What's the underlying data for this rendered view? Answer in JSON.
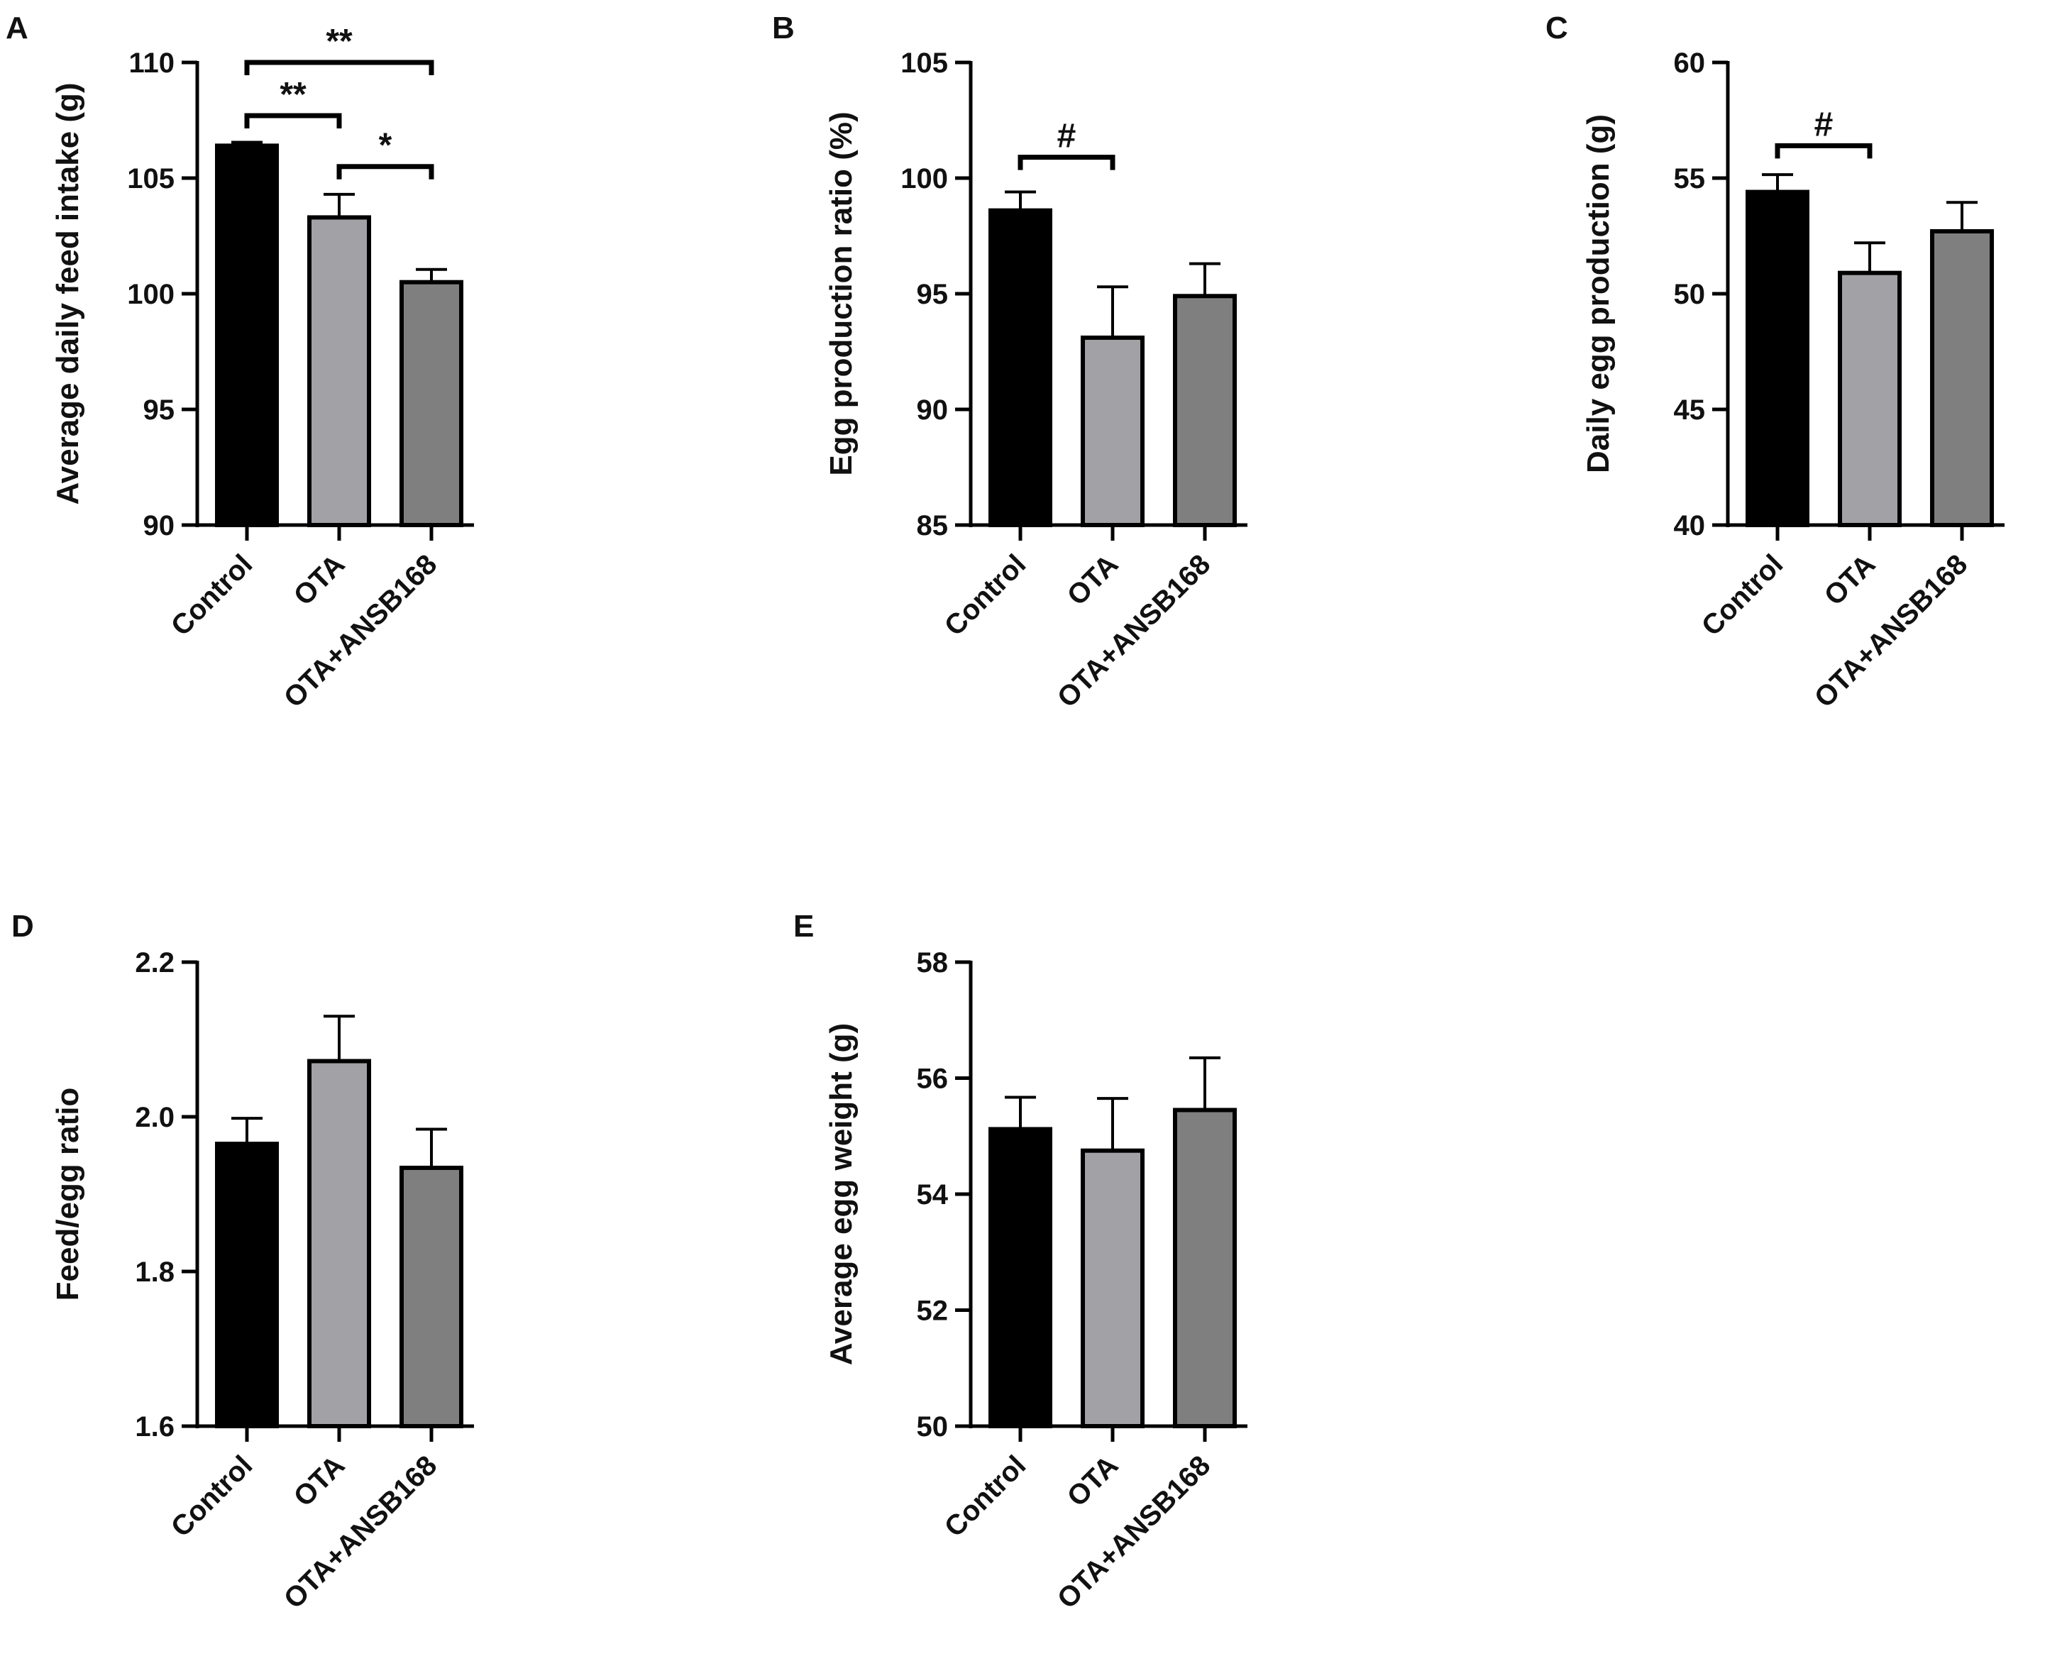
{
  "figure": {
    "colors": {
      "Control": "#000000",
      "OTA": "#a2a1a6",
      "OTA+ANSB168": "#7f7f7f",
      "axis": "#000000"
    }
  },
  "chart_data": [
    {
      "panel": "A",
      "type": "bar",
      "categories": [
        "Control",
        "OTA",
        "OTA+ANSB168"
      ],
      "values": [
        106.4,
        103.3,
        100.5
      ],
      "errors": [
        0.15,
        1.0,
        0.55
      ],
      "ylabel": "Average daily feed intake (g)",
      "xlabel": "",
      "ylim": [
        90,
        110
      ],
      "yticks": [
        90,
        95,
        100,
        105,
        110
      ],
      "ytick_labels": [
        "90",
        "95",
        "100",
        "105",
        "110"
      ],
      "significance": [
        {
          "from": "Control",
          "to": "OTA+ANSB168",
          "label": "**",
          "level": 110
        },
        {
          "from": "Control",
          "to": "OTA",
          "label": "**",
          "level": 107.7
        },
        {
          "from": "OTA",
          "to": "OTA+ANSB168",
          "label": "*",
          "level": 105.5
        }
      ]
    },
    {
      "panel": "B",
      "type": "bar",
      "categories": [
        "Control",
        "OTA",
        "OTA+ANSB168"
      ],
      "values": [
        98.6,
        93.1,
        94.9
      ],
      "errors": [
        0.8,
        2.2,
        1.4
      ],
      "ylabel": "Egg production ratio (%)",
      "xlabel": "",
      "ylim": [
        85,
        105
      ],
      "yticks": [
        85,
        90,
        95,
        100,
        105
      ],
      "ytick_labels": [
        "85",
        "90",
        "95",
        "100",
        "105"
      ],
      "significance": [
        {
          "from": "Control",
          "to": "OTA",
          "label": "#",
          "level": 100.9
        }
      ]
    },
    {
      "panel": "C",
      "type": "bar",
      "categories": [
        "Control",
        "OTA",
        "OTA+ANSB168"
      ],
      "values": [
        54.4,
        50.9,
        52.7
      ],
      "errors": [
        0.75,
        1.3,
        1.25
      ],
      "ylabel": "Daily egg production (g)",
      "xlabel": "",
      "ylim": [
        40,
        60
      ],
      "yticks": [
        40,
        45,
        50,
        55,
        60
      ],
      "ytick_labels": [
        "40",
        "45",
        "50",
        "55",
        "60"
      ],
      "significance": [
        {
          "from": "Control",
          "to": "OTA",
          "label": "#",
          "level": 56.4
        }
      ]
    },
    {
      "panel": "D",
      "type": "bar",
      "categories": [
        "Control",
        "OTA",
        "OTA+ANSB168"
      ],
      "values": [
        1.965,
        2.072,
        1.934
      ],
      "errors": [
        0.033,
        0.058,
        0.05
      ],
      "ylabel": "Feed/egg ratio",
      "xlabel": "",
      "ylim": [
        1.6,
        2.2
      ],
      "yticks": [
        1.6,
        1.8,
        2.0,
        2.2
      ],
      "ytick_labels": [
        "1.6",
        "1.8",
        "2.0",
        "2.2"
      ],
      "significance": []
    },
    {
      "panel": "E",
      "type": "bar",
      "categories": [
        "Control",
        "OTA",
        "OTA+ANSB168"
      ],
      "values": [
        55.12,
        54.75,
        55.45
      ],
      "errors": [
        0.55,
        0.9,
        0.9
      ],
      "ylabel": "Average egg weight (g)",
      "xlabel": "",
      "ylim": [
        50,
        58
      ],
      "yticks": [
        50,
        52,
        54,
        56,
        58
      ],
      "ytick_labels": [
        "50",
        "52",
        "54",
        "56",
        "58"
      ],
      "significance": []
    }
  ]
}
